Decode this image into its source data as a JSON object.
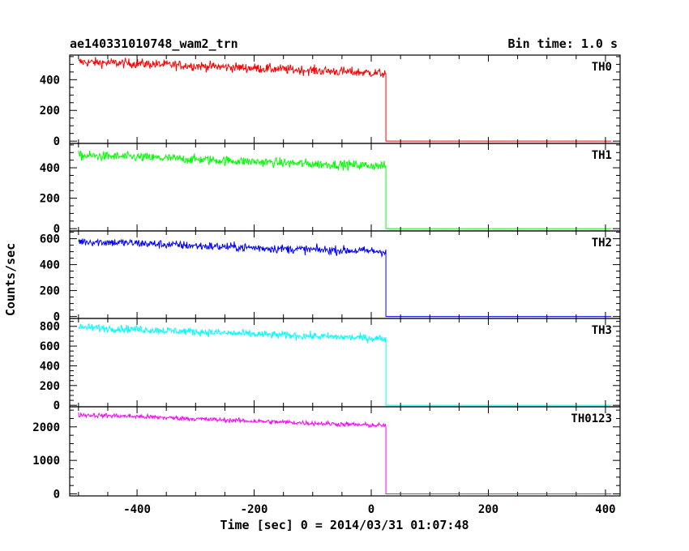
{
  "chart_data": {
    "type": "line",
    "title": "ae140331010748_wam2_trn",
    "subtitle": "Bin time: 1.0 s",
    "xlabel": "Time [sec] 0 = 2014/03/31 01:07:48",
    "ylabel": "Counts/sec",
    "xlim": [
      -515,
      425
    ],
    "xticks": [
      -400,
      -200,
      0,
      200,
      400
    ],
    "grid": false,
    "panels": [
      {
        "name": "TH0",
        "color": "#ff0000",
        "ylim": [
          -15,
          560
        ],
        "yticks": [
          0,
          200,
          400
        ],
        "drop_time": 25,
        "series": {
          "x": [
            -500,
            -400,
            -300,
            -200,
            -100,
            0,
            25
          ],
          "y": [
            515,
            505,
            490,
            475,
            460,
            445,
            440
          ]
        },
        "noise": 22,
        "after_value": 0
      },
      {
        "name": "TH1",
        "color": "#00ff00",
        "ylim": [
          -15,
          560
        ],
        "yticks": [
          0,
          200,
          400
        ],
        "drop_time": 25,
        "series": {
          "x": [
            -500,
            -400,
            -300,
            -200,
            -100,
            0,
            25
          ],
          "y": [
            480,
            470,
            455,
            440,
            425,
            415,
            410
          ]
        },
        "noise": 22,
        "after_value": 0
      },
      {
        "name": "TH2",
        "color": "#0000ff",
        "ylim": [
          -15,
          660
        ],
        "yticks": [
          0,
          200,
          400,
          600
        ],
        "drop_time": 25,
        "series": {
          "x": [
            -500,
            -400,
            -300,
            -200,
            -100,
            0,
            25
          ],
          "y": [
            580,
            565,
            545,
            530,
            515,
            505,
            500
          ]
        },
        "noise": 24,
        "after_value": 0
      },
      {
        "name": "TH3",
        "color": "#00ffff",
        "ylim": [
          -15,
          880
        ],
        "yticks": [
          0,
          200,
          400,
          600,
          800
        ],
        "drop_time": 25,
        "series": {
          "x": [
            -500,
            -400,
            -300,
            -200,
            -100,
            0,
            25
          ],
          "y": [
            790,
            770,
            745,
            720,
            700,
            680,
            675
          ]
        },
        "noise": 28,
        "after_value": 0
      },
      {
        "name": "TH0123",
        "color": "#ff00ff",
        "ylim": [
          -60,
          2600
        ],
        "yticks": [
          0,
          1000,
          2000
        ],
        "drop_time": 25,
        "series": {
          "x": [
            -500,
            -400,
            -300,
            -200,
            -100,
            0,
            25
          ],
          "y": [
            2360,
            2310,
            2240,
            2170,
            2110,
            2050,
            2040
          ]
        },
        "noise": 50,
        "after_value": 0
      }
    ]
  }
}
